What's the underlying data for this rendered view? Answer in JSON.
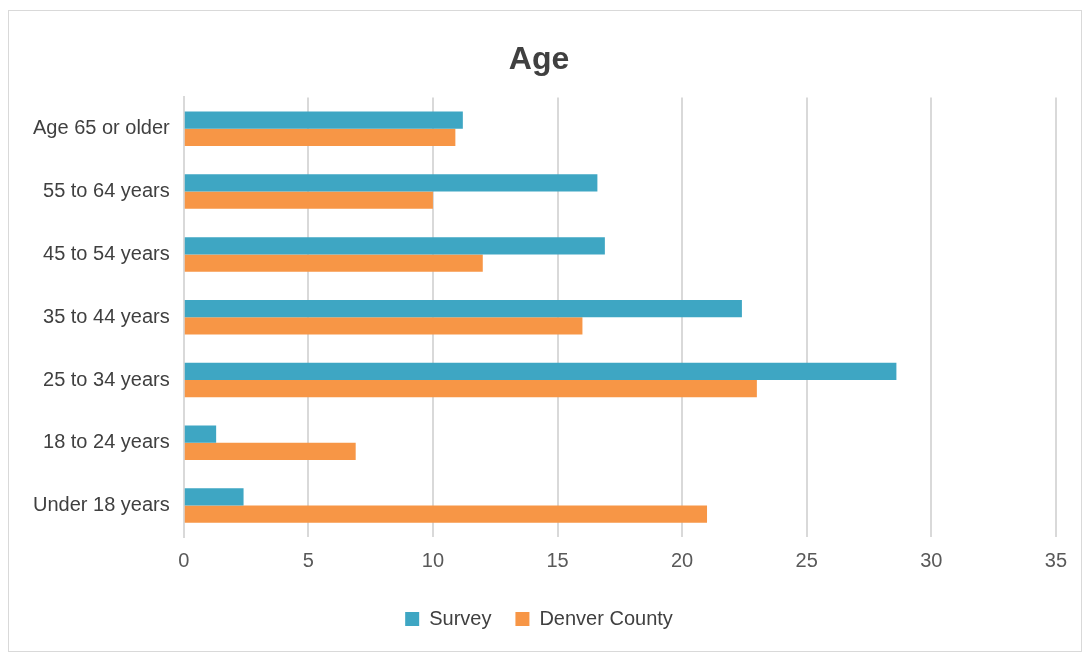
{
  "chart_data": {
    "type": "bar",
    "title": "Age",
    "orientation": "horizontal",
    "categories": [
      "Age 65 or older",
      "55 to 64 years",
      "45 to 54 years",
      "35 to 44 years",
      "25 to 34 years",
      "18 to 24 years",
      "Under 18 years"
    ],
    "series": [
      {
        "name": "Survey",
        "color": "#3ea6c3",
        "values": [
          11.2,
          16.6,
          16.9,
          22.4,
          28.6,
          1.3,
          2.4
        ]
      },
      {
        "name": "Denver County",
        "color": "#f79646",
        "values": [
          10.9,
          10,
          12,
          16,
          23,
          6.9,
          21
        ]
      }
    ],
    "xlim": [
      0,
      35
    ],
    "xticks": [
      0,
      5,
      10,
      15,
      20,
      25,
      30,
      35
    ],
    "grid": "x",
    "legend": "bottom"
  }
}
